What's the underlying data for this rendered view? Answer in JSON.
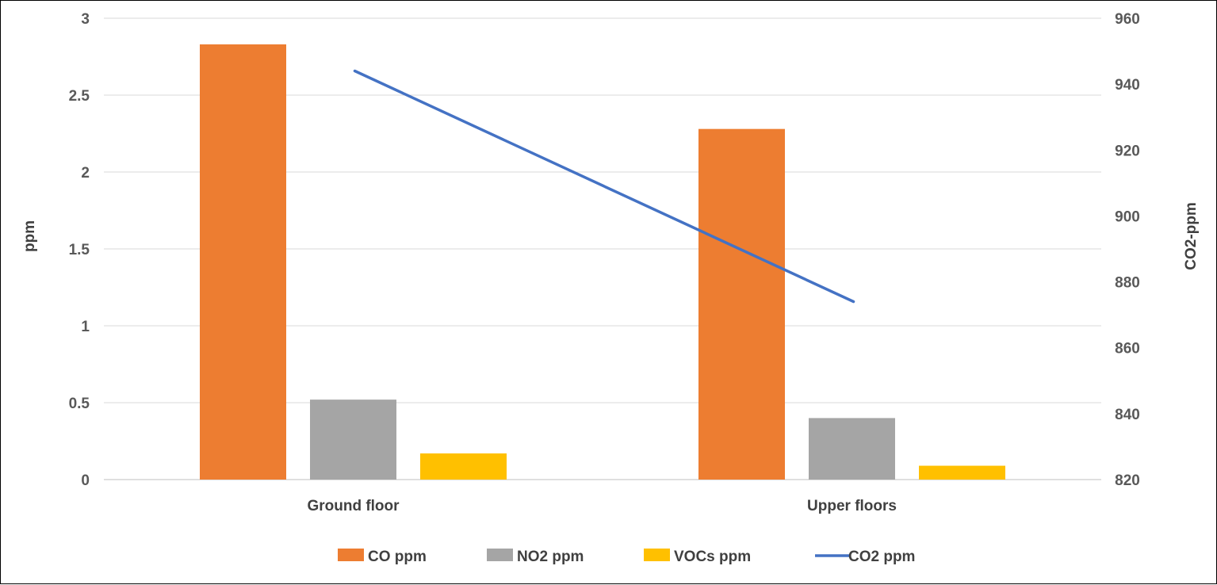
{
  "chart_data": {
    "type": "bar",
    "categories": [
      "Ground floor",
      "Upper floors"
    ],
    "series": [
      {
        "name": "CO ppm",
        "values": [
          2.83,
          2.28
        ],
        "axis": "left",
        "kind": "bar",
        "color": "#ED7D31"
      },
      {
        "name": "NO2 ppm",
        "values": [
          0.52,
          0.4
        ],
        "axis": "left",
        "kind": "bar",
        "color": "#A5A5A5"
      },
      {
        "name": "VOCs ppm",
        "values": [
          0.17,
          0.09
        ],
        "axis": "left",
        "kind": "bar",
        "color": "#FFC000"
      },
      {
        "name": "CO2 ppm",
        "values": [
          944,
          874
        ],
        "axis": "right",
        "kind": "line",
        "color": "#4472C4"
      }
    ],
    "ylabel": "ppm",
    "y2label": "CO2-ppm",
    "ylim": [
      0,
      3
    ],
    "y2lim": [
      820,
      960
    ],
    "yticks": [
      "0",
      "0.5",
      "1",
      "1.5",
      "2",
      "2.5",
      "3"
    ],
    "y2ticks": [
      "820",
      "840",
      "860",
      "880",
      "900",
      "920",
      "940",
      "960"
    ],
    "grid": true,
    "legend": "bottom"
  }
}
